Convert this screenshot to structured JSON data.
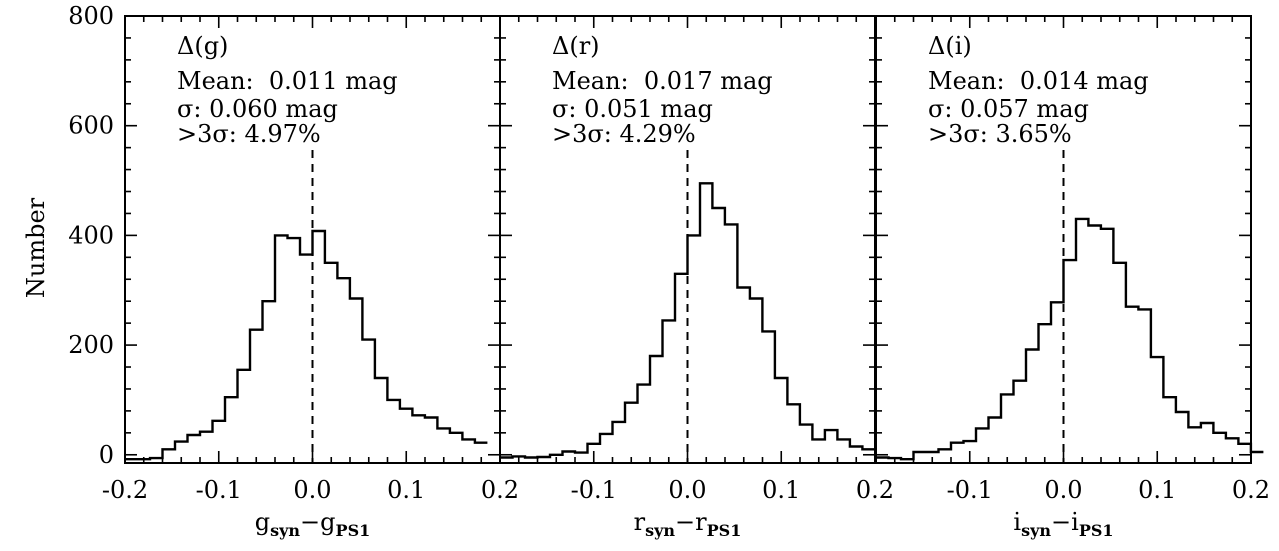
{
  "chart_data": {
    "type": "histogram",
    "ylabel": "Number",
    "ylim": [
      -15,
      800
    ],
    "yticks": [
      0,
      200,
      400,
      600,
      800
    ],
    "xlim": [
      -0.2,
      0.2
    ],
    "xtick_labels": [
      "-0.2",
      "-0.1",
      "0.0",
      "0.1",
      "0.2"
    ],
    "xtick_values": [
      -0.2,
      -0.1,
      0.0,
      0.1,
      0.2
    ],
    "bin_start": -0.2,
    "bin_width": 0.01333,
    "mean_line_x": 0.0,
    "panels": [
      {
        "id": "g",
        "title": "Δ(g)",
        "mean_text": "Mean:  0.011 mag",
        "sigma_text": "σ: 0.060 mag",
        "outlier_text": ">3σ: 4.97%",
        "xlabel_main": "g",
        "xlabel_sub": "syn",
        "xlabel_minus": "−",
        "xlabel_main2": "g",
        "xlabel_sub2": "PS1",
        "values": [
          -8,
          -8,
          -6,
          10,
          24,
          36,
          42,
          62,
          105,
          155,
          228,
          280,
          400,
          395,
          365,
          408,
          350,
          322,
          285,
          210,
          140,
          100,
          84,
          72,
          68,
          48,
          40,
          28,
          22
        ]
      },
      {
        "id": "r",
        "title": "Δ(r)",
        "mean_text": "Mean:  0.017 mag",
        "sigma_text": "σ: 0.051 mag",
        "outlier_text": ">3σ: 4.29%",
        "xlabel_main": "r",
        "xlabel_sub": "syn",
        "xlabel_minus": "−",
        "xlabel_main2": "r",
        "xlabel_sub2": "PS1",
        "values": [
          -5,
          -3,
          -5,
          -4,
          0,
          6,
          4,
          20,
          38,
          60,
          95,
          128,
          180,
          245,
          330,
          400,
          495,
          450,
          420,
          305,
          285,
          225,
          140,
          92,
          55,
          28,
          45,
          28,
          15,
          10
        ]
      },
      {
        "id": "i",
        "title": "Δ(i)",
        "mean_text": "Mean:  0.014 mag",
        "sigma_text": "σ: 0.057 mag",
        "outlier_text": ">3σ: 3.65%",
        "xlabel_main": "i",
        "xlabel_sub": "syn",
        "xlabel_minus": "−",
        "xlabel_main2": "i",
        "xlabel_sub2": "PS1",
        "values": [
          -5,
          -6,
          -8,
          5,
          5,
          10,
          22,
          25,
          48,
          68,
          110,
          135,
          192,
          238,
          278,
          355,
          430,
          418,
          412,
          350,
          270,
          265,
          178,
          105,
          78,
          50,
          58,
          40,
          30,
          20,
          5
        ]
      }
    ]
  }
}
